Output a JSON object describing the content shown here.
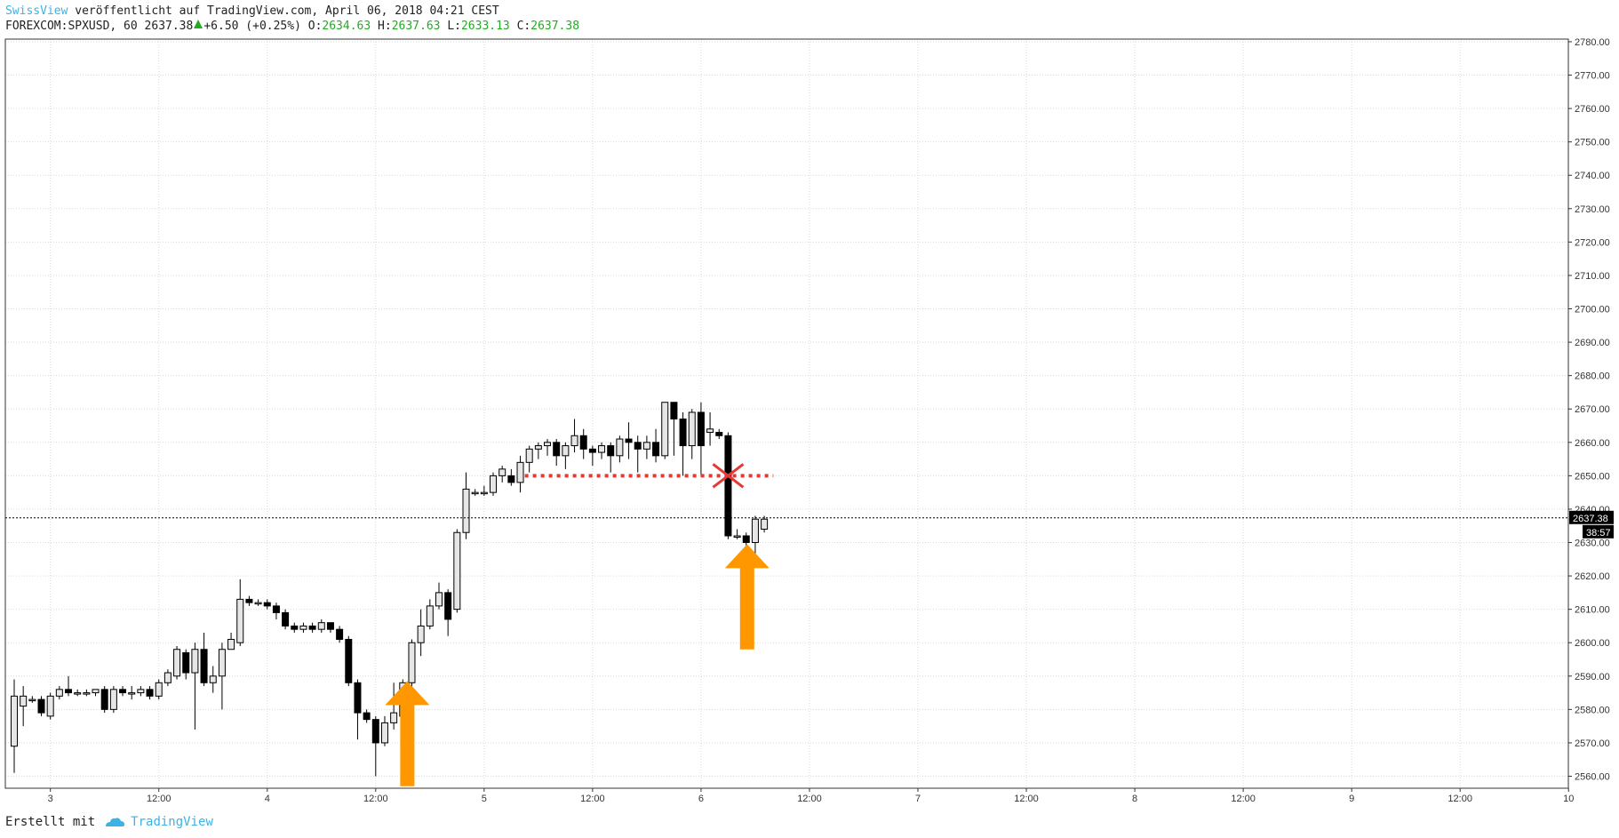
{
  "header": {
    "author": "SwissView",
    "published_text": "veröffentlicht auf TradingView.com, April 06, 2018 04:21 CEST",
    "symbol": "FOREXCOM:SPXUSD, 60",
    "last": "2637.38",
    "change": "+6.50 (+0.25%)",
    "o_label": "O:",
    "o_val": "2634.63",
    "h_label": "H:",
    "h_val": "2637.63",
    "l_label": "L:",
    "l_val": "2633.13",
    "c_label": "C:",
    "c_val": "2637.38"
  },
  "footer": {
    "created_with": "Erstellt mit",
    "brand": "TradingView",
    "logo_icon": "tradingview-cloud-icon"
  },
  "price_tag": {
    "price": "2637.38",
    "countdown": "38:57"
  },
  "colors": {
    "up_fill": "#e6e6e6",
    "down_fill": "#000000",
    "grid": "#d9d9d9",
    "arrow": "#ff9800",
    "resistance": "#e53935",
    "accent": "#3bb3e4",
    "value_green": "#22ab22"
  },
  "chart_data": {
    "type": "candlestick",
    "ylim": [
      2557,
      2782
    ],
    "y_ticks": [
      2560,
      2570,
      2580,
      2590,
      2600,
      2610,
      2620,
      2630,
      2640,
      2650,
      2660,
      2670,
      2680,
      2690,
      2700,
      2710,
      2720,
      2730,
      2740,
      2750,
      2760,
      2770,
      2780
    ],
    "x_ticks": [
      {
        "label": "3",
        "t": 4
      },
      {
        "label": "12:00",
        "t": 16
      },
      {
        "label": "4",
        "t": 28
      },
      {
        "label": "12:00",
        "t": 40
      },
      {
        "label": "5",
        "t": 52
      },
      {
        "label": "12:00",
        "t": 64
      },
      {
        "label": "6",
        "t": 76
      },
      {
        "label": "12:00",
        "t": 88
      },
      {
        "label": "7",
        "t": 100
      },
      {
        "label": "12:00",
        "t": 112
      },
      {
        "label": "8",
        "t": 124
      },
      {
        "label": "12:00",
        "t": 136
      },
      {
        "label": "9",
        "t": 148
      },
      {
        "label": "12:00",
        "t": 160
      },
      {
        "label": "10",
        "t": 172
      }
    ],
    "candles": [
      [
        0,
        2569,
        2584,
        2589,
        2561
      ],
      [
        1,
        2581,
        2584,
        2587,
        2575
      ],
      [
        2,
        2583,
        2583,
        2584,
        2582
      ],
      [
        3,
        2583,
        2579,
        2584,
        2578
      ],
      [
        4,
        2578,
        2584,
        2585,
        2577
      ],
      [
        5,
        2584,
        2586,
        2587,
        2583
      ],
      [
        6,
        2586,
        2585,
        2590,
        2584
      ],
      [
        7,
        2585,
        2585,
        2586,
        2584
      ],
      [
        8,
        2585,
        2585,
        2586,
        2584
      ],
      [
        9,
        2585,
        2586,
        2586,
        2584
      ],
      [
        10,
        2586,
        2580,
        2587,
        2579
      ],
      [
        11,
        2580,
        2586,
        2587,
        2579
      ],
      [
        12,
        2586,
        2585,
        2587,
        2584
      ],
      [
        13,
        2585,
        2585,
        2587,
        2583
      ],
      [
        14,
        2585,
        2586,
        2587,
        2584
      ],
      [
        15,
        2586,
        2584,
        2587,
        2583
      ],
      [
        16,
        2584,
        2588,
        2589,
        2583
      ],
      [
        17,
        2588,
        2591,
        2592,
        2587
      ],
      [
        18,
        2590,
        2598,
        2599,
        2589
      ],
      [
        19,
        2597,
        2591,
        2598,
        2589
      ],
      [
        20,
        2591,
        2598,
        2600,
        2574
      ],
      [
        21,
        2598,
        2588,
        2603,
        2587
      ],
      [
        22,
        2588,
        2590,
        2593,
        2585
      ],
      [
        23,
        2590,
        2598,
        2600,
        2580
      ],
      [
        24,
        2598,
        2601,
        2603,
        2598
      ],
      [
        25,
        2600,
        2613,
        2619,
        2599
      ],
      [
        26,
        2613,
        2612,
        2614,
        2611
      ],
      [
        27,
        2612,
        2612,
        2613,
        2611
      ],
      [
        28,
        2612,
        2611,
        2613,
        2610
      ],
      [
        29,
        2611,
        2609,
        2612,
        2607
      ],
      [
        30,
        2609,
        2605,
        2610,
        2604
      ],
      [
        31,
        2605,
        2604,
        2606,
        2603
      ],
      [
        32,
        2604,
        2605,
        2606,
        2603
      ],
      [
        33,
        2605,
        2604,
        2606,
        2603
      ],
      [
        34,
        2604,
        2606,
        2607,
        2603
      ],
      [
        35,
        2606,
        2604,
        2606,
        2603
      ],
      [
        36,
        2604,
        2601,
        2605,
        2600
      ],
      [
        37,
        2601,
        2588,
        2602,
        2587
      ],
      [
        38,
        2588,
        2579,
        2589,
        2571
      ],
      [
        39,
        2579,
        2577,
        2580,
        2576
      ],
      [
        40,
        2577,
        2570,
        2578,
        2560
      ],
      [
        41,
        2570,
        2576,
        2578,
        2569
      ],
      [
        42,
        2576,
        2579,
        2588,
        2574
      ],
      [
        43,
        2578,
        2588,
        2589,
        2573
      ],
      [
        44,
        2588,
        2600,
        2601,
        2584
      ],
      [
        45,
        2600,
        2605,
        2610,
        2596
      ],
      [
        46,
        2605,
        2611,
        2613,
        2604
      ],
      [
        47,
        2611,
        2615,
        2618,
        2610
      ],
      [
        48,
        2615,
        2607,
        2616,
        2602
      ],
      [
        49,
        2610,
        2633,
        2634,
        2609
      ],
      [
        50,
        2633,
        2646,
        2651,
        2631
      ],
      [
        51,
        2645,
        2645,
        2646,
        2644
      ],
      [
        52,
        2645,
        2645,
        2647,
        2644
      ],
      [
        53,
        2645,
        2650,
        2651,
        2644
      ],
      [
        54,
        2650,
        2652,
        2653,
        2648
      ],
      [
        55,
        2650,
        2648,
        2652,
        2647
      ],
      [
        56,
        2648,
        2654,
        2656,
        2645
      ],
      [
        57,
        2654,
        2658,
        2659,
        2651
      ],
      [
        58,
        2658,
        2659,
        2660,
        2655
      ],
      [
        59,
        2659,
        2660,
        2661,
        2656
      ],
      [
        60,
        2660,
        2656,
        2661,
        2653
      ],
      [
        61,
        2656,
        2659,
        2660,
        2652
      ],
      [
        62,
        2659,
        2662,
        2667,
        2657
      ],
      [
        63,
        2662,
        2658,
        2664,
        2655
      ],
      [
        64,
        2658,
        2657,
        2659,
        2653
      ],
      [
        65,
        2657,
        2659,
        2660,
        2655
      ],
      [
        66,
        2659,
        2656,
        2660,
        2651
      ],
      [
        67,
        2656,
        2661,
        2662,
        2654
      ],
      [
        68,
        2661,
        2660,
        2666,
        2655
      ],
      [
        69,
        2660,
        2658,
        2662,
        2651
      ],
      [
        70,
        2658,
        2660,
        2662,
        2655
      ],
      [
        71,
        2660,
        2656,
        2664,
        2654
      ],
      [
        72,
        2656,
        2672,
        2672,
        2655
      ],
      [
        73,
        2672,
        2667,
        2672,
        2656
      ],
      [
        74,
        2667,
        2659,
        2669,
        2650
      ],
      [
        75,
        2659,
        2669,
        2670,
        2655
      ],
      [
        76,
        2669,
        2659,
        2672,
        2650
      ],
      [
        77,
        2663,
        2664,
        2669,
        2659
      ],
      [
        78,
        2663,
        2662,
        2664,
        2661
      ],
      [
        79,
        2662,
        2632,
        2663,
        2631
      ],
      [
        80,
        2632,
        2632,
        2634,
        2631
      ],
      [
        81,
        2632,
        2630,
        2633,
        2620
      ],
      [
        82,
        2630,
        2637,
        2638,
        2624
      ],
      [
        83,
        2634,
        2637,
        2638,
        2633
      ]
    ],
    "resistance_level": 2650,
    "current_price": 2637.38
  }
}
